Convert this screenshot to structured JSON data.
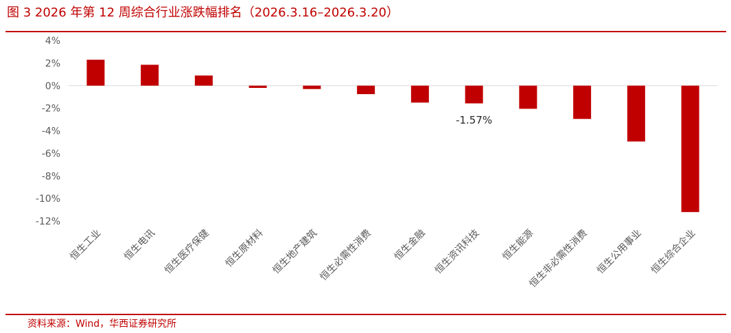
{
  "header": {
    "title": "图 3 2026 年第 12 周综合行业涨跌幅排名（2026.3.16–2026.3.20）"
  },
  "footer": {
    "source": "资料来源：Wind，华西证券研究所"
  },
  "colors": {
    "bar": "#C00000",
    "accent": "#C00000",
    "axis": "#D9D9D9"
  },
  "chart_data": {
    "type": "bar",
    "categories": [
      "恒生工业",
      "恒生电讯",
      "恒生医疗保健",
      "恒生原材料",
      "恒生地产建筑",
      "恒生必需性消费",
      "恒生金融",
      "恒生资讯科技",
      "恒生能源",
      "恒生非必需性消费",
      "恒生公用事业",
      "恒生综合企业"
    ],
    "values": [
      2.3,
      1.85,
      0.9,
      -0.2,
      -0.3,
      -0.75,
      -1.5,
      -1.57,
      -2.05,
      -2.95,
      -4.95,
      -11.2
    ],
    "yticks": [
      "4%",
      "2%",
      "0%",
      "-2%",
      "-4%",
      "-6%",
      "-8%",
      "-10%",
      "-12%"
    ],
    "ylim": [
      -12,
      4
    ],
    "annotations": [
      {
        "index": 7,
        "text": "-1.57%"
      }
    ],
    "grid": false,
    "legend": "none"
  }
}
